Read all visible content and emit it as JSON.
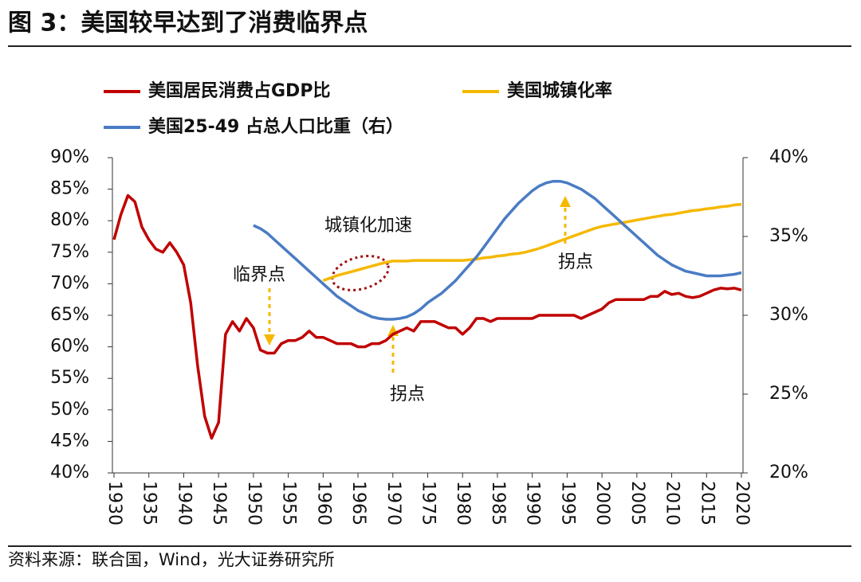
{
  "title": "图 3：美国较早达到了消费临界点",
  "source": "资料来源：联合国，Wind，光大证券研究所",
  "chart_data": {
    "type": "line",
    "x": [
      1930,
      1931,
      1932,
      1933,
      1934,
      1935,
      1936,
      1937,
      1938,
      1939,
      1940,
      1941,
      1942,
      1943,
      1944,
      1945,
      1946,
      1947,
      1948,
      1949,
      1950,
      1951,
      1952,
      1953,
      1954,
      1955,
      1956,
      1957,
      1958,
      1959,
      1960,
      1961,
      1962,
      1963,
      1964,
      1965,
      1966,
      1967,
      1968,
      1969,
      1970,
      1971,
      1972,
      1973,
      1974,
      1975,
      1976,
      1977,
      1978,
      1979,
      1980,
      1981,
      1982,
      1983,
      1984,
      1985,
      1986,
      1987,
      1988,
      1989,
      1990,
      1991,
      1992,
      1993,
      1994,
      1995,
      1996,
      1997,
      1998,
      1999,
      2000,
      2001,
      2002,
      2003,
      2004,
      2005,
      2006,
      2007,
      2008,
      2009,
      2010,
      2011,
      2012,
      2013,
      2014,
      2015,
      2016,
      2017,
      2018,
      2019,
      2020
    ],
    "series": [
      {
        "name": "美国居民消费占GDP比",
        "color": "#c00000",
        "axis": "y",
        "values": [
          77,
          81,
          84,
          83,
          79,
          77,
          75.5,
          75,
          76.5,
          75,
          73,
          67,
          57,
          49,
          45.5,
          48,
          62,
          64,
          62.5,
          64.5,
          63,
          59.5,
          59,
          59,
          60.5,
          61,
          61,
          61.5,
          62.5,
          61.5,
          61.5,
          61,
          60.5,
          60.5,
          60.5,
          60,
          60,
          60.5,
          60.5,
          61,
          62,
          62.5,
          63,
          62.5,
          64,
          64,
          64,
          63.5,
          63,
          63,
          62,
          63,
          64.5,
          64.5,
          64,
          64.5,
          64.5,
          64.5,
          64.5,
          64.5,
          64.5,
          65,
          65,
          65,
          65,
          65,
          65,
          64.5,
          65,
          65.5,
          66,
          67,
          67.5,
          67.5,
          67.5,
          67.5,
          67.5,
          68,
          68,
          68.8,
          68.3,
          68.5,
          68,
          67.8,
          68,
          68.5,
          69,
          69.3,
          69.2,
          69.3,
          69
        ]
      },
      {
        "name": "美国城镇化率",
        "color": "#f5b800",
        "axis": "y",
        "values": [
          null,
          null,
          null,
          null,
          null,
          null,
          null,
          null,
          null,
          null,
          null,
          null,
          null,
          null,
          null,
          null,
          null,
          null,
          null,
          null,
          null,
          null,
          null,
          null,
          null,
          null,
          null,
          null,
          null,
          null,
          70.5,
          70.9,
          71.3,
          71.6,
          71.9,
          72.2,
          72.5,
          72.8,
          73.1,
          73.4,
          73.6,
          73.6,
          73.6,
          73.7,
          73.7,
          73.7,
          73.7,
          73.7,
          73.7,
          73.7,
          73.7,
          73.8,
          73.9,
          74.1,
          74.2,
          74.4,
          74.5,
          74.7,
          74.8,
          75,
          75.3,
          75.6,
          76,
          76.4,
          76.8,
          77.2,
          77.6,
          78,
          78.4,
          78.8,
          79.1,
          79.3,
          79.5,
          79.7,
          79.9,
          80.1,
          80.3,
          80.5,
          80.7,
          80.9,
          81,
          81.2,
          81.4,
          81.6,
          81.7,
          81.9,
          82,
          82.2,
          82.3,
          82.5,
          82.6
        ]
      },
      {
        "name": "美国25-49 占总人口比重（右）",
        "color": "#4a7cc4",
        "axis": "y2",
        "values": [
          null,
          null,
          null,
          null,
          null,
          null,
          null,
          null,
          null,
          null,
          null,
          null,
          null,
          null,
          null,
          null,
          null,
          null,
          null,
          null,
          35.7,
          35.5,
          35.2,
          34.8,
          34.4,
          34,
          33.6,
          33.2,
          32.8,
          32.4,
          32,
          31.6,
          31.2,
          30.9,
          30.6,
          30.3,
          30.1,
          29.9,
          29.8,
          29.75,
          29.75,
          29.8,
          29.9,
          30.1,
          30.4,
          30.8,
          31.1,
          31.4,
          31.8,
          32.2,
          32.7,
          33.2,
          33.7,
          34.3,
          34.9,
          35.5,
          36.1,
          36.6,
          37.1,
          37.5,
          37.9,
          38.2,
          38.4,
          38.5,
          38.5,
          38.4,
          38.2,
          38,
          37.7,
          37.4,
          37,
          36.6,
          36.2,
          35.8,
          35.4,
          35,
          34.6,
          34.2,
          33.8,
          33.5,
          33.2,
          33,
          32.8,
          32.7,
          32.6,
          32.5,
          32.5,
          32.5,
          32.55,
          32.6,
          32.7
        ]
      }
    ],
    "xlim": [
      1930,
      2020
    ],
    "xticks": [
      1930,
      1935,
      1940,
      1945,
      1950,
      1955,
      1960,
      1965,
      1970,
      1975,
      1980,
      1985,
      1990,
      1995,
      2000,
      2005,
      2010,
      2015,
      2020
    ],
    "ylim": [
      40,
      90
    ],
    "yticks": [
      {
        "value": 40,
        "label": "40%"
      },
      {
        "value": 45,
        "label": "45%"
      },
      {
        "value": 50,
        "label": "50%"
      },
      {
        "value": 55,
        "label": "55%"
      },
      {
        "value": 60,
        "label": "60%"
      },
      {
        "value": 65,
        "label": "65%"
      },
      {
        "value": 70,
        "label": "70%"
      },
      {
        "value": 75,
        "label": "75%"
      },
      {
        "value": 80,
        "label": "80%"
      },
      {
        "value": 85,
        "label": "85%"
      },
      {
        "value": 90,
        "label": "90%"
      }
    ],
    "y2lim": [
      20,
      40
    ],
    "y2ticks": [
      {
        "value": 20,
        "label": "20%"
      },
      {
        "value": 25,
        "label": "25%"
      },
      {
        "value": 30,
        "label": "30%"
      },
      {
        "value": 35,
        "label": "35%"
      },
      {
        "value": 40,
        "label": "40%"
      }
    ],
    "annotations": [
      "城镇化加速",
      "临界点",
      "拐点",
      "拐点"
    ],
    "grid": false
  }
}
